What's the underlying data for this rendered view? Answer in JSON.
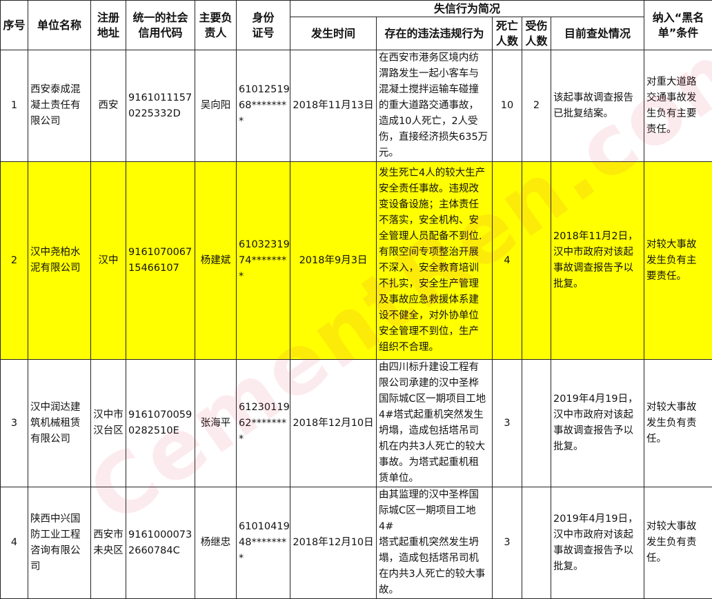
{
  "header": {
    "group_title": "失信行为简况",
    "columns": [
      "序号",
      "单位名称",
      "注册\n地址",
      "统一的社会\n信用代码",
      "主要负\n责人",
      "身份\n证号",
      "发生时间",
      "存在的违法违规行为",
      "死亡\n人数",
      "受伤\n人数",
      "目前查处情况",
      "纳入“黑名\n单”条件"
    ]
  },
  "rows": [
    {
      "no": "1",
      "name": "西安泰成混\n凝土责任有\n限公司",
      "addr": "西安",
      "code": "9161011157\n0225332D",
      "person": "吴向阳",
      "id": "61012519\n68*******\n*",
      "date": "2018年11月13日",
      "violation": "在西安市港务区境内纺\n渭路发生一起小客车与\n混凝土搅拌运输车碰撞\n的重大道路交通事故，\n造成10人死亡，2人受\n伤，直接经济损失635万\n元。",
      "deaths": "10",
      "injuries": "2",
      "status": "该起事故调查报告\n已批复结案。",
      "condition": "对重大道路\n交通事故发\n生负有主要\n责任。",
      "highlight": false
    },
    {
      "no": "2",
      "name": "汉中尧柏水\n泥有限公司",
      "addr": "汉中",
      "code": "9161070067\n15466107",
      "person": "杨建斌",
      "id": "61032319\n74*******\n*",
      "date": "2018年9月3日",
      "violation": "发生死亡4人的较大生产\n安全责任事故。违规改\n变设备设施；主体责任\n不落实，安全机构、安\n全管理人员配备不到位.\n有限空间专项整治开展\n不深入，安全教育培训\n不扎实，安全生产管理\n及事故应急救援体系建\n设不健全，对外协单位\n安全管理不到位，生产\n组织不合理。",
      "deaths": "4",
      "injuries": "",
      "status": "2018年11月2日，\n汉中市政府对该起\n事故调查报告予以\n批复。",
      "condition": "对较大事故\n发生负有主\n要责任。",
      "highlight": true
    },
    {
      "no": "3",
      "name": "汉中润达建\n筑机械租赁\n有限公司",
      "addr": "汉中市\n汉台区",
      "code": "9161070059\n0282510E",
      "person": "张海平",
      "id": "61230119\n62*******\n*",
      "date": "2018年12月10日",
      "violation": "由四川标升建设工程有\n限公司承建的汉中圣桦\n国际城C区一期项目工地\n4#塔式起重机突然发生\n坍塌，造成包括塔吊司\n机在内共3人死亡的较大\n事故。为塔式起重机租\n赁单位。",
      "deaths": "3",
      "injuries": "",
      "status": "2019年4月19日，\n汉中市政府对该起\n事故调查报告予以\n批复。",
      "condition": "对较大事故\n发生负有责\n任。",
      "highlight": false
    },
    {
      "no": "4",
      "name": "陕西中兴国\n防工业工程\n咨询有限公\n司",
      "addr": "西安市\n未央区",
      "code": "9161000073\n2660784C",
      "person": "杨继忠",
      "id": "61010419\n48*******\n*",
      "date": "2018年12月10日",
      "violation": "由其监理的汉中圣桦国\n际城C区一期项目工地4#\n塔式起重机突然发生坍\n塌，造成包括塔吊司机\n在内共3人死亡的较大事\n故。",
      "deaths": "3",
      "injuries": "",
      "status": "2019年4月19日，\n汉中市政府对该起\n事故调查报告予以\n批复。",
      "condition": "对较大事故\n发生负有责\n任。",
      "highlight": false
    }
  ],
  "watermark": "CementRen.com 水泥人网",
  "colors": {
    "highlight": "#ffff00",
    "border": "#222222"
  }
}
